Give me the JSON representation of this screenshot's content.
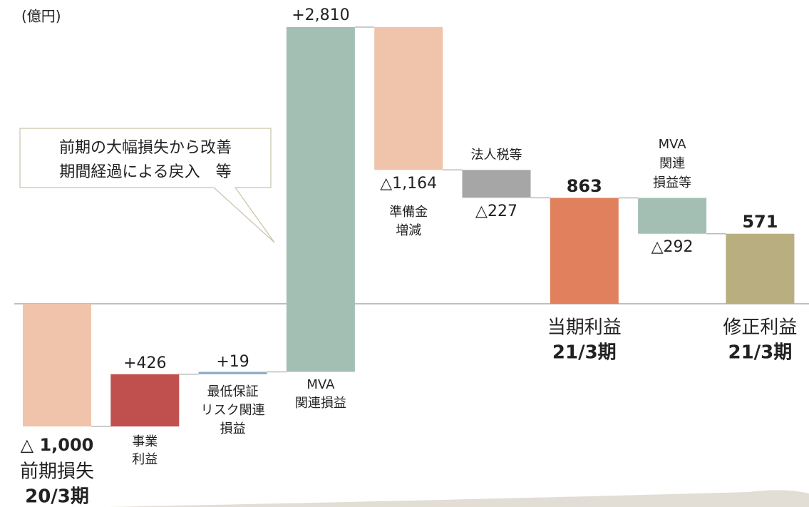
{
  "chart_data": {
    "type": "waterfall",
    "unit_label": "(億円)",
    "annotation": [
      "前期の大幅損失から改善",
      "期間経過による戻入　等"
    ],
    "categories": [
      [
        "前期損失",
        "20/3期"
      ],
      [
        "事業",
        "利益"
      ],
      [
        "最低保証",
        "リスク関連",
        "損益"
      ],
      [
        "MVA",
        "関連損益"
      ],
      [
        "準備金",
        "増減"
      ],
      [
        "法人税等"
      ],
      [
        "当期利益",
        "21/3期"
      ],
      [
        "MVA",
        "関連",
        "損益等"
      ],
      [
        "修正利益",
        "21/3期"
      ]
    ],
    "values": [
      -1000,
      426,
      19,
      2810,
      -1164,
      -227,
      863,
      -292,
      571
    ],
    "value_labels": [
      "△ 1,000",
      "+426",
      "+19",
      "+2,810",
      "△1,164",
      "△227",
      "863",
      "△292",
      "571"
    ],
    "measure": [
      "relative",
      "relative",
      "relative",
      "relative",
      "relative",
      "relative",
      "total",
      "relative",
      "total"
    ],
    "colors": [
      "#f0c4aa",
      "#c0504d",
      "#8ea9c1",
      "#a3bfb4",
      "#f0c4aa",
      "#a6a6a6",
      "#e0805c",
      "#a3bfb4",
      "#b9ae80"
    ]
  }
}
